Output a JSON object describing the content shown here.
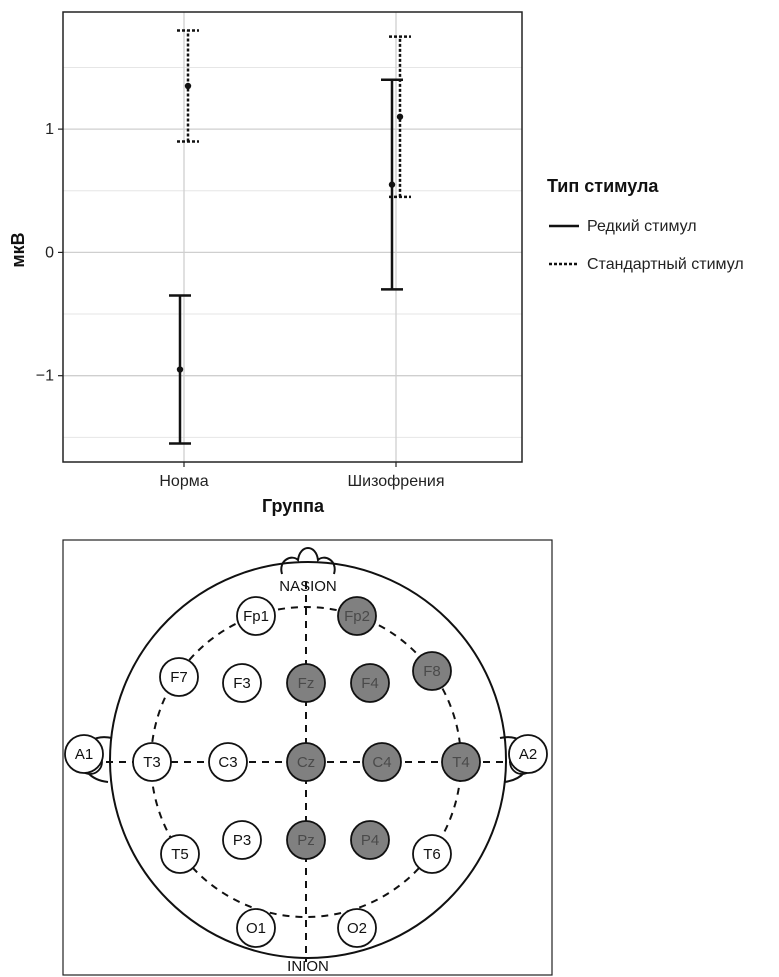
{
  "chart_data": {
    "type": "errorbar",
    "ylabel": "мкВ",
    "xlabel": "Группа",
    "categories": [
      "Норма",
      "Шизофрения"
    ],
    "ylim": [
      -1.7,
      1.95
    ],
    "yticks": [
      -1,
      0,
      1
    ],
    "ytick_labels": [
      "−1",
      "0",
      "1"
    ],
    "grid": true,
    "legend": {
      "title": "Тип стимула",
      "placement": "right"
    },
    "series": [
      {
        "name": "Редкий стимул",
        "line_style": "solid",
        "points": [
          {
            "category": "Норма",
            "mean": -0.95,
            "lower": -1.55,
            "upper": -0.35
          },
          {
            "category": "Шизофрения",
            "mean": 0.55,
            "lower": -0.3,
            "upper": 1.4
          }
        ]
      },
      {
        "name": "Стандартный стимул",
        "line_style": "dotted",
        "points": [
          {
            "category": "Норма",
            "mean": 1.35,
            "lower": 0.9,
            "upper": 1.8
          },
          {
            "category": "Шизофрения",
            "mean": 1.1,
            "lower": 0.45,
            "upper": 1.75
          }
        ]
      }
    ]
  },
  "eeg_diagram": {
    "nasion_label": "NASION",
    "inion_label": "INION",
    "highlight_color": "#808080",
    "electrodes": [
      {
        "label": "Fp1",
        "highlighted": false
      },
      {
        "label": "Fp2",
        "highlighted": true
      },
      {
        "label": "F7",
        "highlighted": false
      },
      {
        "label": "F3",
        "highlighted": false
      },
      {
        "label": "Fz",
        "highlighted": true
      },
      {
        "label": "F4",
        "highlighted": true
      },
      {
        "label": "F8",
        "highlighted": true
      },
      {
        "label": "A1",
        "highlighted": false
      },
      {
        "label": "T3",
        "highlighted": false
      },
      {
        "label": "C3",
        "highlighted": false
      },
      {
        "label": "Cz",
        "highlighted": true
      },
      {
        "label": "C4",
        "highlighted": true
      },
      {
        "label": "T4",
        "highlighted": true
      },
      {
        "label": "A2",
        "highlighted": false
      },
      {
        "label": "T5",
        "highlighted": false
      },
      {
        "label": "P3",
        "highlighted": false
      },
      {
        "label": "Pz",
        "highlighted": true
      },
      {
        "label": "P4",
        "highlighted": true
      },
      {
        "label": "T6",
        "highlighted": false
      },
      {
        "label": "O1",
        "highlighted": false
      },
      {
        "label": "O2",
        "highlighted": false
      }
    ]
  }
}
